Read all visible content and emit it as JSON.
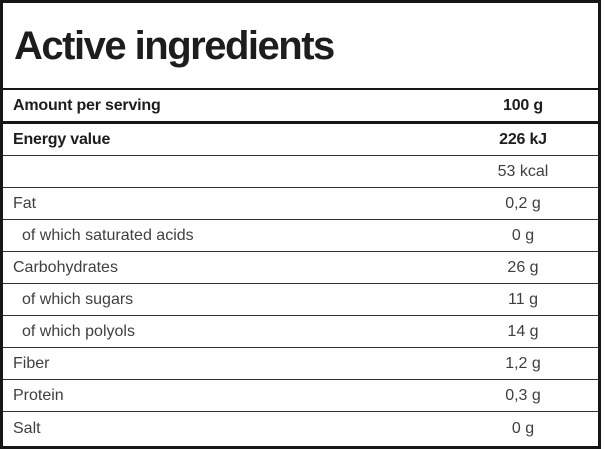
{
  "title": "Active ingredients",
  "serving_row": {
    "label": "Amount per serving",
    "value": "100 g"
  },
  "rows": [
    {
      "label": "Energy value",
      "value": "226 kJ",
      "bold": true,
      "indent": false
    },
    {
      "label": "",
      "value": "53 kcal",
      "bold": false,
      "indent": false
    },
    {
      "label": "Fat",
      "value": "0,2 g",
      "bold": false,
      "indent": false
    },
    {
      "label": "of which saturated acids",
      "value": "0 g",
      "bold": false,
      "indent": true
    },
    {
      "label": "Carbohydrates",
      "value": "26 g",
      "bold": false,
      "indent": false
    },
    {
      "label": "of which sugars",
      "value": "11 g",
      "bold": false,
      "indent": true
    },
    {
      "label": "of which polyols",
      "value": "14 g",
      "bold": false,
      "indent": true
    },
    {
      "label": "Fiber",
      "value": "1,2 g",
      "bold": false,
      "indent": false
    },
    {
      "label": "Protein",
      "value": "0,3 g",
      "bold": false,
      "indent": false
    },
    {
      "label": "Salt",
      "value": "0 g",
      "bold": false,
      "indent": false
    }
  ],
  "colors": {
    "border": "#161616",
    "row_separator": "#2e2e2e",
    "text_bold": "#1d1d1d",
    "text_regular": "#3f3f3f",
    "background": "#ffffff"
  }
}
